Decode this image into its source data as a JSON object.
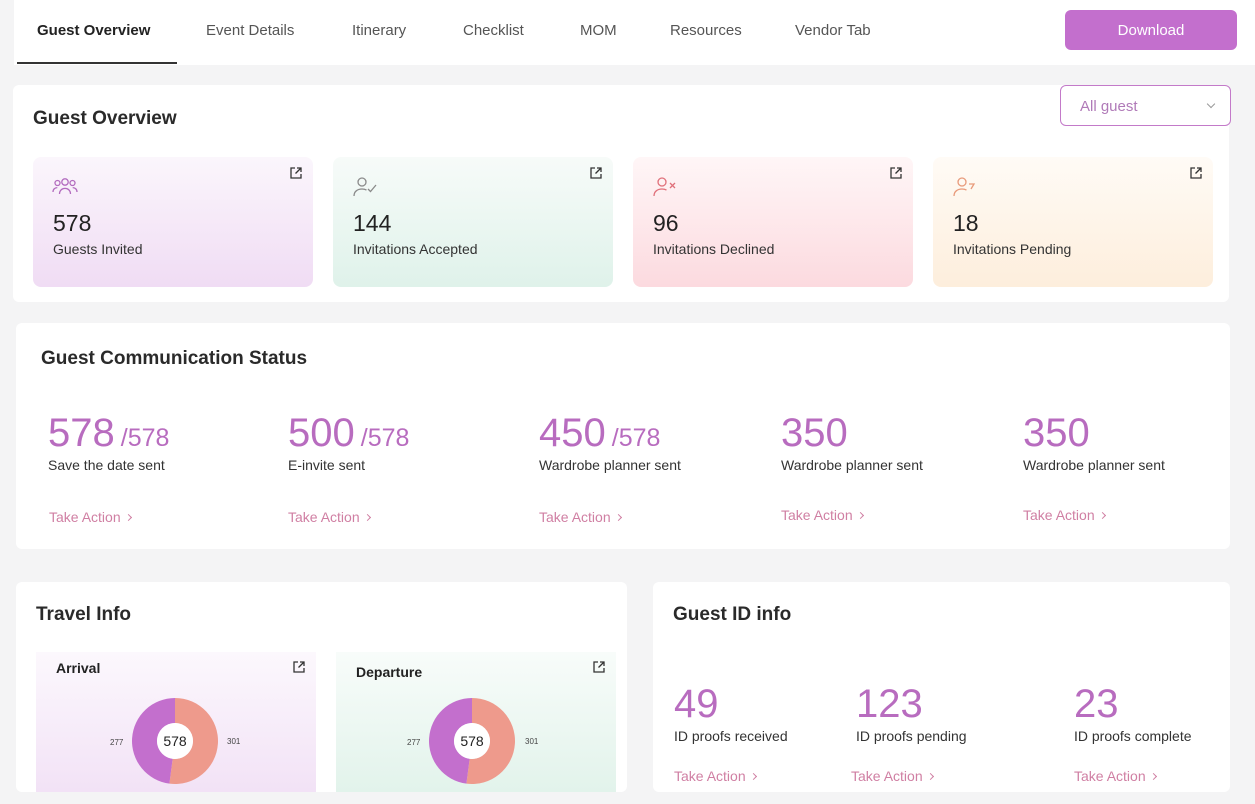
{
  "tabs": [
    {
      "label": "Guest Overview",
      "active": true
    },
    {
      "label": "Event Details"
    },
    {
      "label": "Itinerary"
    },
    {
      "label": "Checklist"
    },
    {
      "label": "MOM"
    },
    {
      "label": "Resources"
    },
    {
      "label": "Vendor Tab"
    }
  ],
  "download_label": "Download",
  "guest_overview": {
    "title": "Guest Overview",
    "filter_value": "All guest",
    "stats": [
      {
        "value": "578",
        "label": "Guests Invited",
        "icon": "guests-icon",
        "color": "#b36cbf"
      },
      {
        "value": "144",
        "label": "Invitations Accepted",
        "icon": "user-check-icon",
        "color": "#8a8a8a"
      },
      {
        "value": "96",
        "label": "Invitations Declined",
        "icon": "user-x-icon",
        "color": "#e0707a"
      },
      {
        "value": "18",
        "label": "Invitations Pending",
        "icon": "user-clock-icon",
        "color": "#e89a7a"
      }
    ]
  },
  "communication": {
    "title": "Guest Communication Status",
    "action_label": "Take Action",
    "items": [
      {
        "value": "578",
        "total": "/578",
        "label": "Save the date sent"
      },
      {
        "value": "500",
        "total": "/578",
        "label": "E-invite sent"
      },
      {
        "value": "450",
        "total": "/578",
        "label": "Wardrobe planner sent"
      },
      {
        "value": "350",
        "total": "",
        "label": "Wardrobe planner sent"
      },
      {
        "value": "350",
        "total": "",
        "label": "Wardrobe planner sent"
      }
    ]
  },
  "travel": {
    "title": "Travel Info",
    "charts": [
      {
        "title": "Arrival",
        "total": "578",
        "left_value": "277",
        "right_value": "301",
        "values": [
          277,
          301
        ]
      },
      {
        "title": "Departure",
        "total": "578",
        "left_value": "277",
        "right_value": "301",
        "values": [
          277,
          301
        ]
      }
    ],
    "colors": {
      "left": "#c36fcd",
      "right": "#ee9a8c"
    }
  },
  "guest_id": {
    "title": "Guest ID info",
    "action_label": "Take Action",
    "items": [
      {
        "value": "49",
        "label": "ID proofs received"
      },
      {
        "value": "123",
        "label": "ID proofs pending"
      },
      {
        "value": "23",
        "label": "ID proofs complete"
      }
    ]
  }
}
